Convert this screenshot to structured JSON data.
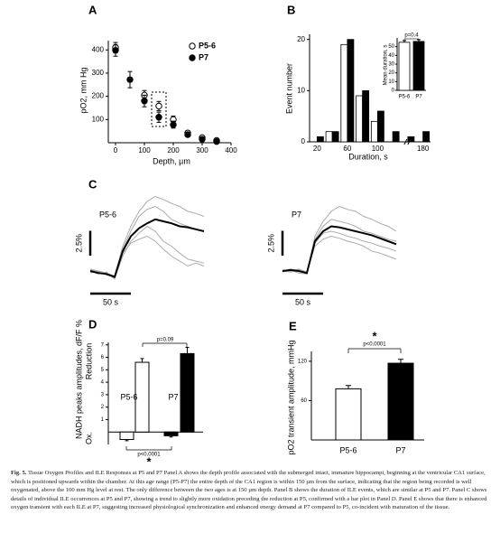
{
  "chart_data": [
    {
      "panel_label": "A",
      "type": "scatter",
      "xlabel": "Depth, µm",
      "ylabel": "pO2, mm Hg",
      "xlim": [
        -25,
        400
      ],
      "xticks": [
        0,
        100,
        200,
        300,
        400
      ],
      "ylim": [
        0,
        440
      ],
      "yticks": [
        100,
        200,
        300,
        400
      ],
      "series": [
        {
          "name": "P5-6",
          "color": "#ffffff",
          "x": [
            0,
            100,
            150,
            200,
            250,
            300,
            350
          ],
          "values": [
            410,
            205,
            158,
            100,
            42,
            22,
            10
          ],
          "errors": [
            22,
            20,
            20,
            15,
            10,
            8,
            5
          ]
        },
        {
          "name": "P7",
          "color": "#000000",
          "x": [
            0,
            50,
            100,
            150,
            200,
            250,
            300,
            350
          ],
          "values": [
            398,
            272,
            180,
            110,
            78,
            35,
            15,
            5
          ],
          "errors": [
            25,
            35,
            25,
            22,
            15,
            8,
            6,
            4
          ]
        }
      ]
    },
    {
      "panel_label": "B",
      "type": "bar",
      "xlabel": "Duration, s",
      "ylabel": "Event number",
      "categories": [
        "20",
        null,
        "60",
        null,
        "100",
        null,
        null,
        "180"
      ],
      "ylim": [
        0,
        21
      ],
      "yticks": [
        0,
        10,
        20
      ],
      "series": [
        {
          "color": "#ffffff",
          "values": [
            0,
            2,
            19,
            9,
            4,
            0,
            0,
            0
          ]
        },
        {
          "color": "#000000",
          "values": [
            1,
            2,
            20,
            10,
            6,
            2,
            1,
            2
          ]
        }
      ]
    },
    {
      "type": "bar",
      "ylabel": "Mean duration, s",
      "categories": [
        "P5-6",
        "P7"
      ],
      "values": [
        55,
        56
      ],
      "errors": [
        2,
        2
      ],
      "colors": [
        "#ffffff",
        "#000000"
      ],
      "ylim": [
        0,
        60
      ],
      "yticks": [
        0,
        10,
        20,
        30,
        40,
        50
      ],
      "annotation": "p=0.4"
    },
    {
      "panel_label": "C",
      "type": "line",
      "title": "P5-6",
      "x": [
        0,
        10,
        20,
        30,
        40,
        50,
        60,
        70,
        80,
        90,
        100,
        110,
        120,
        130,
        140
      ],
      "scale_y": 2.5,
      "scale_y_label": "2.5%",
      "scale_x": 50,
      "scale_x_label": "50 s",
      "series": [
        {
          "color": "#aaaaaa",
          "values": [
            0.2,
            0,
            -0.2,
            -0.5,
            2.5,
            4.5,
            6.0,
            7.0,
            7.5,
            7.2,
            6.8,
            6.5,
            6.0,
            5.8,
            5.5
          ]
        },
        {
          "color": "#aaaaaa",
          "values": [
            0,
            -0.3,
            -0.1,
            -0.8,
            1.5,
            3.0,
            3.8,
            4.5,
            4.0,
            3.0,
            2.5,
            1.8,
            1.2,
            1.0,
            0.8
          ]
        },
        {
          "color": "#aaaaaa",
          "values": [
            -0.2,
            0,
            -0.4,
            -0.6,
            2.2,
            4.0,
            5.5,
            6.2,
            6.5,
            6.0,
            5.2,
            4.8,
            4.5,
            4.2,
            4.0
          ]
        },
        {
          "color": "#aaaaaa",
          "values": [
            0.1,
            -0.1,
            -0.3,
            -0.7,
            1.8,
            2.8,
            3.2,
            3.5,
            3.0,
            2.2,
            1.5,
            1.0,
            0.5,
            0.8,
            0.5
          ]
        },
        {
          "color": "#000000",
          "values": [
            0,
            -0.2,
            -0.3,
            -0.6,
            2.0,
            3.5,
            4.3,
            4.8,
            5.2,
            5.0,
            4.8,
            4.5,
            4.4,
            4.2,
            4.0
          ]
        }
      ]
    },
    {
      "type": "line",
      "title": "P7",
      "x": [
        0,
        10,
        20,
        30,
        40,
        50,
        60,
        70,
        80,
        90,
        100,
        110,
        120,
        130,
        140
      ],
      "scale_y": 2.5,
      "scale_y_label": "2.5%",
      "scale_x": 50,
      "scale_x_label": "50 s",
      "series": [
        {
          "color": "#aaaaaa",
          "values": [
            0,
            0.2,
            0,
            -0.3,
            3.5,
            5.0,
            6.0,
            6.5,
            6.2,
            6.0,
            5.5,
            5.2,
            4.8,
            4.5,
            4.0
          ]
        },
        {
          "color": "#aaaaaa",
          "values": [
            0.1,
            0,
            0.2,
            -0.1,
            2.5,
            3.2,
            3.5,
            3.3,
            3.0,
            2.8,
            2.5,
            2.0,
            1.8,
            1.5,
            1.2
          ]
        },
        {
          "color": "#aaaaaa",
          "values": [
            -0.1,
            0.1,
            -0.2,
            -0.3,
            3.2,
            4.5,
            5.2,
            5.0,
            4.8,
            4.5,
            4.0,
            3.8,
            3.5,
            3.2,
            3.0
          ]
        },
        {
          "color": "#aaaaaa",
          "values": [
            0,
            -0.1,
            0.1,
            -0.2,
            2.8,
            3.8,
            4.0,
            3.8,
            3.5,
            3.3,
            3.0,
            2.8,
            2.5,
            2.3,
            2.0
          ]
        },
        {
          "color": "#000000",
          "values": [
            0,
            0.1,
            0,
            -0.2,
            3.0,
            4.0,
            4.5,
            4.4,
            4.2,
            4.0,
            3.8,
            3.6,
            3.3,
            3.0,
            2.7
          ]
        }
      ]
    },
    {
      "panel_label": "D",
      "type": "bar",
      "ylabel": "NADH peaks amplitudes, dF/F %",
      "ylabel_upper": "Reduction",
      "ylabel_lower": "Ox.",
      "ylim": [
        -1,
        7.2
      ],
      "yticks": [
        1,
        2,
        3,
        4,
        5,
        6,
        7
      ],
      "series": [
        {
          "name": "P5-6",
          "color": "#ffffff",
          "values": [
            -0.6,
            5.6
          ],
          "errors": [
            0.1,
            0.3
          ]
        },
        {
          "name": "P7",
          "color": "#000000",
          "values": [
            -0.3,
            6.3
          ],
          "errors": [
            0.1,
            0.5
          ]
        }
      ],
      "annotations": [
        "p=0.09",
        "p<0.0001",
        "*"
      ]
    },
    {
      "panel_label": "E",
      "type": "bar",
      "ylabel": "pO2 transient amplitude, mmHg",
      "categories": [
        "P5-6",
        "P7"
      ],
      "values": [
        78,
        117
      ],
      "errors": [
        5,
        6
      ],
      "colors": [
        "#ffffff",
        "#000000"
      ],
      "ylim": [
        0,
        135
      ],
      "yticks": [
        60,
        120
      ],
      "annotations": [
        "p<0.0001",
        "*"
      ]
    }
  ],
  "caption": {
    "label": "Fig. 5.",
    "text": "Tissue Oxygen Profiles and ILE Responses at P5 and P7 Panel A shows the depth profile associated with the submerged intact, immature hippocampi, beginning at the ventricular CA1 surface, which is positioned upwards within the chamber. At this age range (P5-P7) the entire depth of the CA1 region is within 150 µm from the surface, indicating that the region being recorded is well oxygenated, above the 100 mm Hg level at rest. The only difference between the two ages is at 150 µm depth. Panel B shows the duration of ILE events, which are similar at P5 and P7. Panel C shows details of individual ILE occurrences at P5 and P7, showing a trend to slightly more oxidation preceding the reduction at P5, confirmed with a bar plot in Panel D. Panel E shows that there is enhanced oxygen transient with each ILE at P7, suggesting increased physiological synchronization and enhanced energy demand at P7 compared to P5, co-incident with maturation of the tissue."
  }
}
